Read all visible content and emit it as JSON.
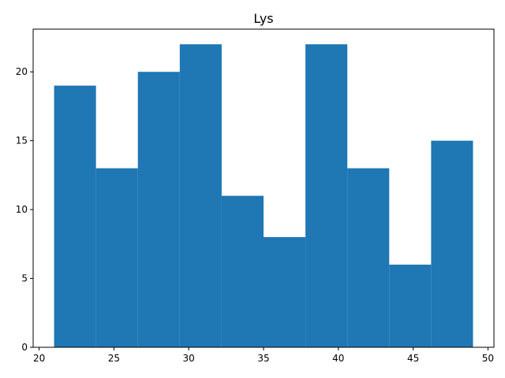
{
  "chart_data": {
    "type": "bar",
    "title": "Lys",
    "xlabel": "",
    "ylabel": "",
    "bins": [
      {
        "x0": 21.0,
        "x1": 23.8,
        "count": 19
      },
      {
        "x0": 23.8,
        "x1": 26.6,
        "count": 13
      },
      {
        "x0": 26.6,
        "x1": 29.4,
        "count": 20
      },
      {
        "x0": 29.4,
        "x1": 32.2,
        "count": 22
      },
      {
        "x0": 32.2,
        "x1": 35.0,
        "count": 11
      },
      {
        "x0": 35.0,
        "x1": 37.8,
        "count": 8
      },
      {
        "x0": 37.8,
        "x1": 40.6,
        "count": 22
      },
      {
        "x0": 40.6,
        "x1": 43.4,
        "count": 13
      },
      {
        "x0": 43.4,
        "x1": 46.2,
        "count": 6
      },
      {
        "x0": 46.2,
        "x1": 49.0,
        "count": 15
      }
    ],
    "xlim": [
      19.6,
      50.4
    ],
    "ylim": [
      0,
      23.1
    ],
    "xticks": [
      20,
      25,
      30,
      35,
      40,
      45,
      50
    ],
    "yticks": [
      0,
      5,
      10,
      15,
      20
    ],
    "grid": false,
    "bar_color": "#1f77b4"
  }
}
